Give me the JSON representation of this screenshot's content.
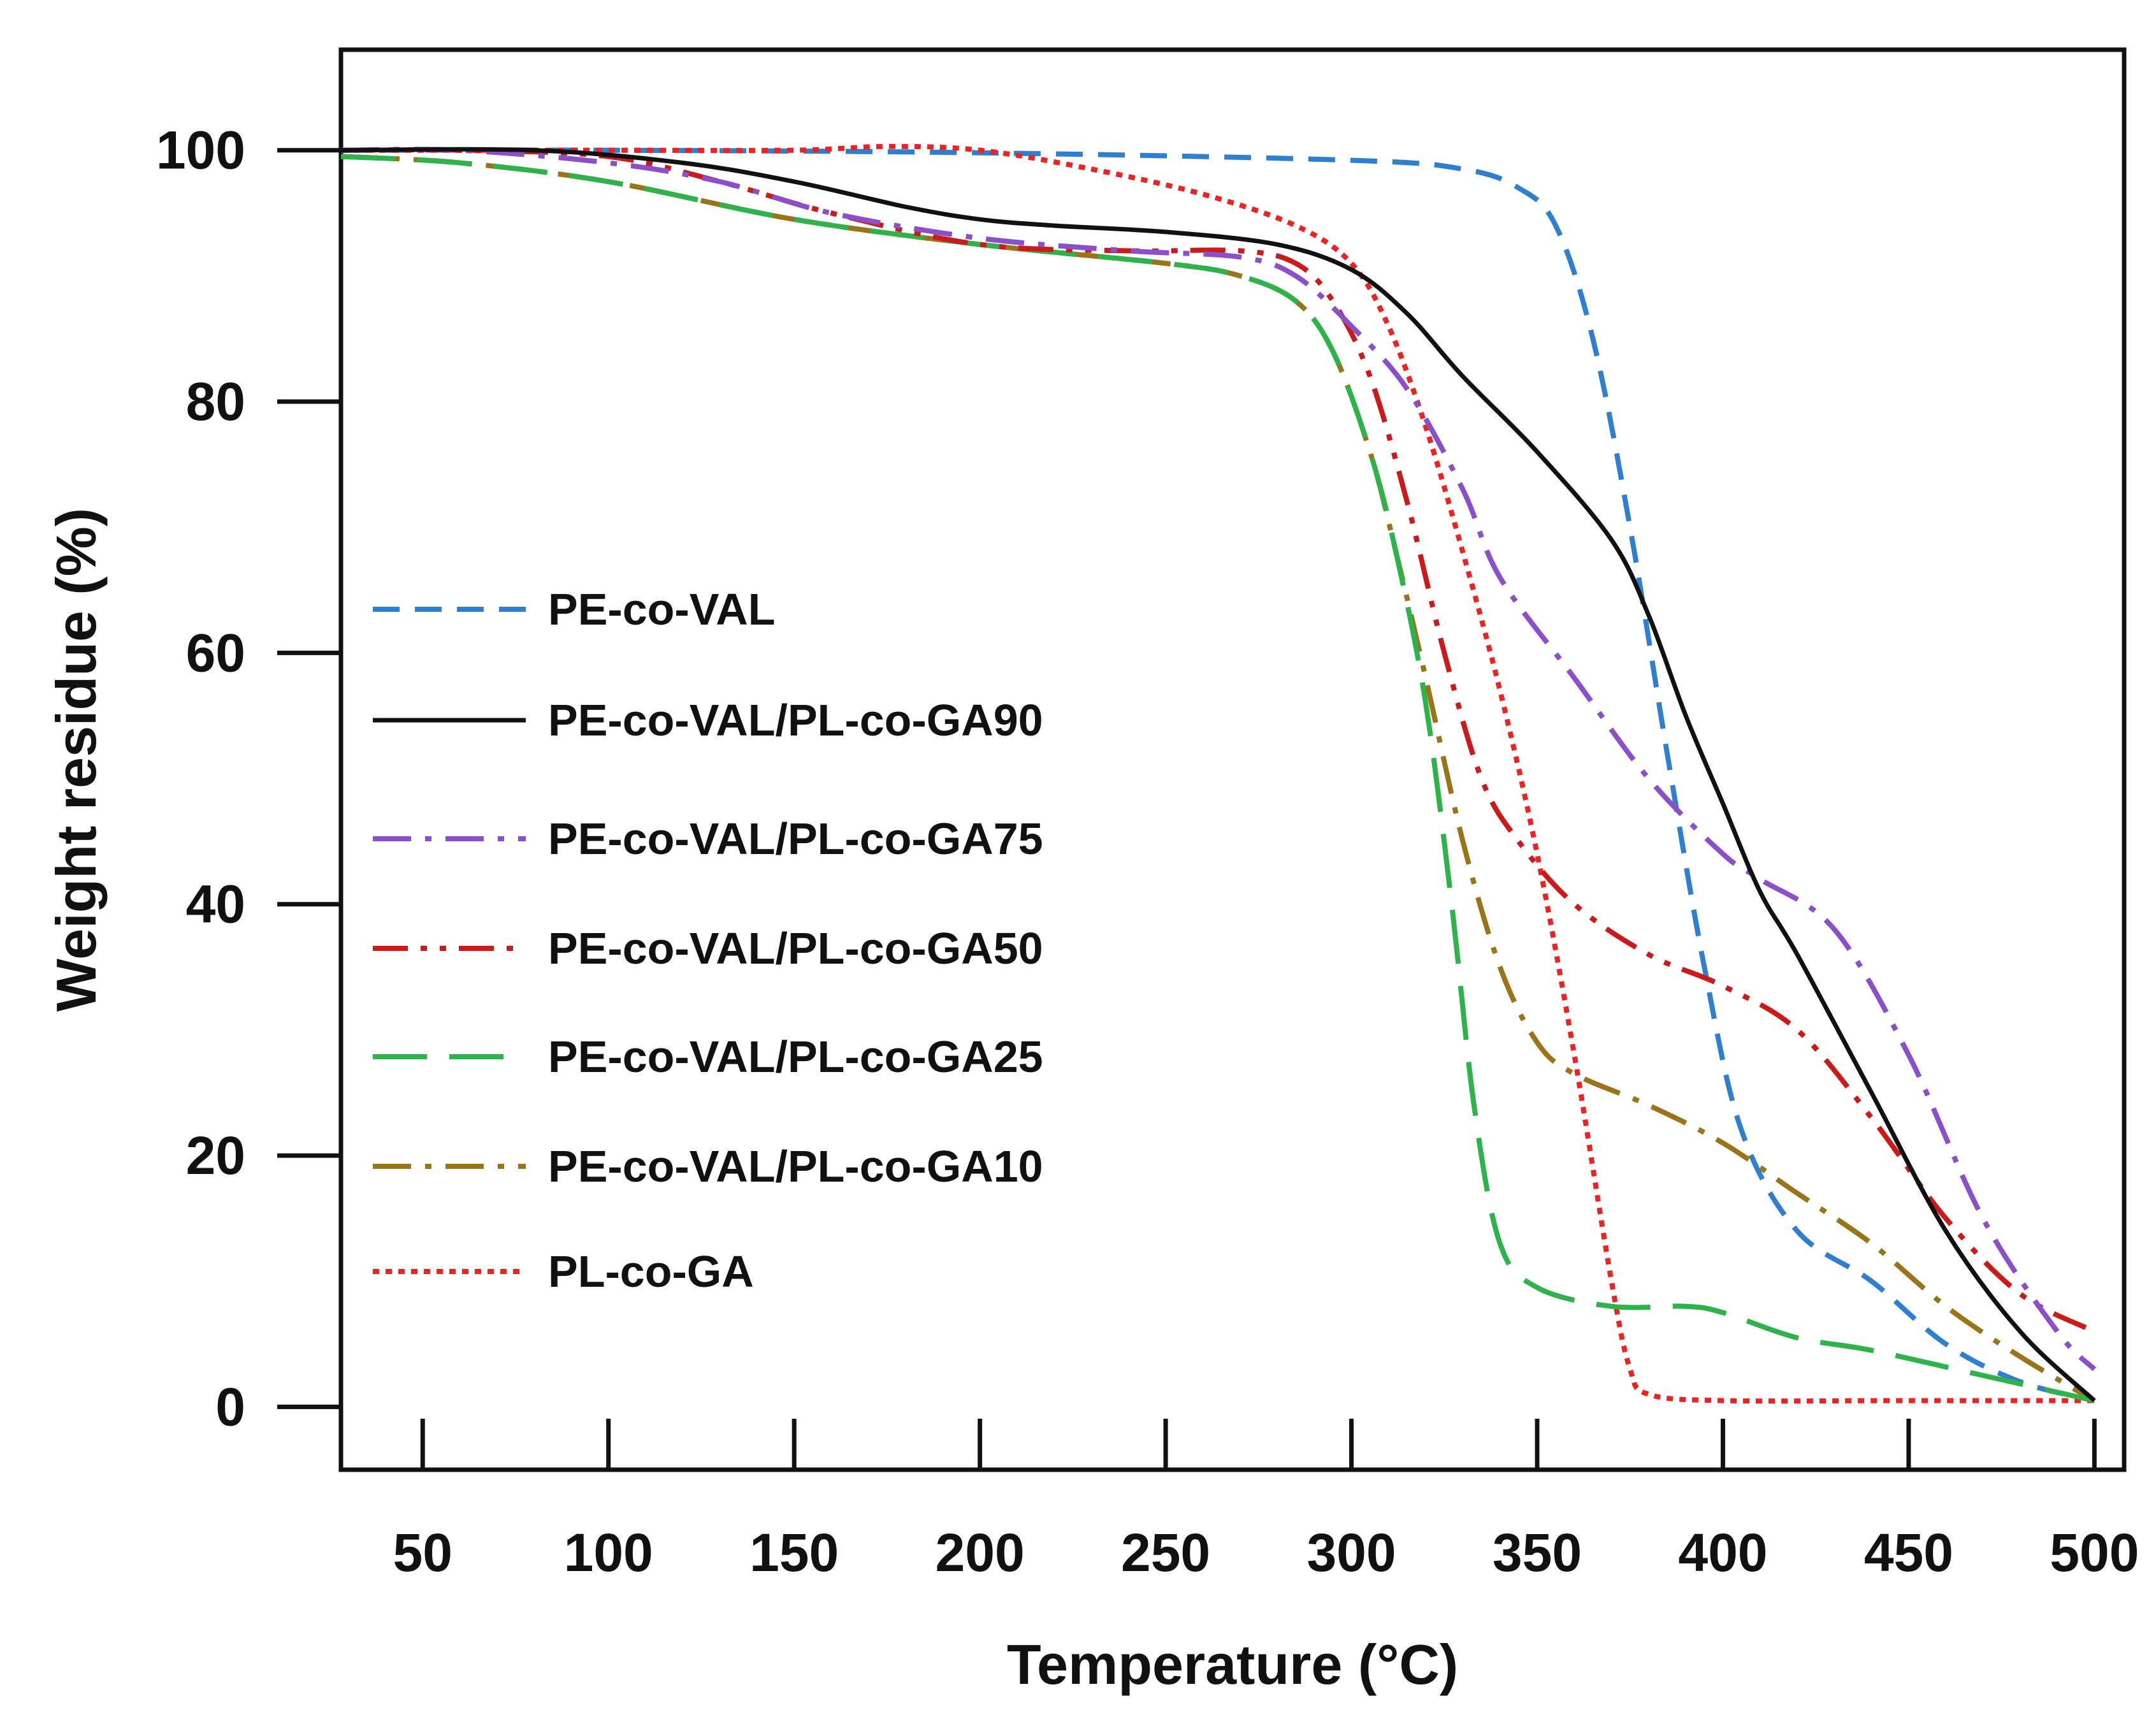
{
  "chart_data": {
    "type": "line",
    "title": "",
    "xlabel": "Temperature (°C)",
    "ylabel": "Weight residue (%)",
    "xlim": [
      28,
      508
    ],
    "ylim": [
      -5,
      108
    ],
    "xticks": [
      50,
      100,
      150,
      200,
      250,
      300,
      350,
      400,
      450,
      500
    ],
    "yticks": [
      0,
      20,
      40,
      60,
      80,
      100
    ],
    "legend_position": "center-left",
    "series": [
      {
        "name": "PE-co-VAL",
        "color": "#2f7fd0",
        "style": "dashed",
        "points": [
          [
            28,
            100
          ],
          [
            100,
            100
          ],
          [
            200,
            99.8
          ],
          [
            300,
            99.2
          ],
          [
            330,
            98.5
          ],
          [
            345,
            97
          ],
          [
            355,
            94
          ],
          [
            365,
            85
          ],
          [
            375,
            70
          ],
          [
            385,
            52
          ],
          [
            395,
            35
          ],
          [
            405,
            22
          ],
          [
            420,
            14
          ],
          [
            440,
            10
          ],
          [
            460,
            5
          ],
          [
            480,
            2
          ],
          [
            500,
            0.5
          ]
        ]
      },
      {
        "name": "PE-co-VAL/PL-co-GA90",
        "color": "#111111",
        "style": "solid",
        "points": [
          [
            28,
            100
          ],
          [
            80,
            100
          ],
          [
            120,
            99
          ],
          [
            150,
            97.5
          ],
          [
            180,
            95.5
          ],
          [
            200,
            94.5
          ],
          [
            220,
            94
          ],
          [
            250,
            93.5
          ],
          [
            280,
            92.5
          ],
          [
            300,
            90.5
          ],
          [
            315,
            87
          ],
          [
            330,
            82
          ],
          [
            350,
            76
          ],
          [
            370,
            69
          ],
          [
            380,
            63
          ],
          [
            390,
            55
          ],
          [
            400,
            48
          ],
          [
            410,
            41
          ],
          [
            420,
            36
          ],
          [
            440,
            25
          ],
          [
            460,
            14
          ],
          [
            480,
            6
          ],
          [
            500,
            0.5
          ]
        ]
      },
      {
        "name": "PE-co-VAL/PL-co-GA75",
        "color": "#8a4fc9",
        "style": "dashdot",
        "points": [
          [
            28,
            100
          ],
          [
            60,
            100
          ],
          [
            100,
            99
          ],
          [
            130,
            97.5
          ],
          [
            160,
            95
          ],
          [
            200,
            93
          ],
          [
            240,
            92
          ],
          [
            270,
            91.5
          ],
          [
            285,
            90
          ],
          [
            300,
            86
          ],
          [
            315,
            81
          ],
          [
            330,
            73
          ],
          [
            340,
            66
          ],
          [
            360,
            58
          ],
          [
            380,
            50
          ],
          [
            400,
            44
          ],
          [
            410,
            42
          ],
          [
            430,
            38
          ],
          [
            450,
            28
          ],
          [
            470,
            15
          ],
          [
            490,
            6
          ],
          [
            500,
            3
          ]
        ]
      },
      {
        "name": "PE-co-VAL/PL-co-GA50",
        "color": "#cc1a1a",
        "style": "dashdotdot",
        "points": [
          [
            28,
            100
          ],
          [
            60,
            100
          ],
          [
            100,
            99.5
          ],
          [
            130,
            97.5
          ],
          [
            160,
            95
          ],
          [
            200,
            92.5
          ],
          [
            240,
            92
          ],
          [
            270,
            92
          ],
          [
            285,
            91
          ],
          [
            295,
            88
          ],
          [
            305,
            82
          ],
          [
            315,
            72
          ],
          [
            325,
            60
          ],
          [
            335,
            50
          ],
          [
            345,
            45
          ],
          [
            360,
            40
          ],
          [
            380,
            36
          ],
          [
            400,
            33.5
          ],
          [
            420,
            30
          ],
          [
            440,
            23
          ],
          [
            460,
            15
          ],
          [
            480,
            9
          ],
          [
            500,
            6
          ]
        ]
      },
      {
        "name": "PE-co-VAL/PL-co-GA25",
        "color": "#2db34a",
        "style": "longdash",
        "points": [
          [
            28,
            99.5
          ],
          [
            60,
            99
          ],
          [
            100,
            97.5
          ],
          [
            150,
            94.5
          ],
          [
            200,
            92.5
          ],
          [
            250,
            91
          ],
          [
            270,
            90
          ],
          [
            285,
            88
          ],
          [
            295,
            84
          ],
          [
            305,
            76
          ],
          [
            312,
            68
          ],
          [
            320,
            56
          ],
          [
            327,
            40
          ],
          [
            333,
            24
          ],
          [
            340,
            13
          ],
          [
            350,
            9.5
          ],
          [
            370,
            8
          ],
          [
            390,
            8
          ],
          [
            400,
            7.5
          ],
          [
            420,
            5.5
          ],
          [
            440,
            4.5
          ],
          [
            470,
            2.5
          ],
          [
            500,
            0.5
          ]
        ]
      },
      {
        "name": "PE-co-VAL/PL-co-GA10",
        "color": "#9a7419",
        "style": "dashdot",
        "points": [
          [
            28,
            99.5
          ],
          [
            60,
            99
          ],
          [
            100,
            97.5
          ],
          [
            150,
            94.5
          ],
          [
            200,
            92.5
          ],
          [
            250,
            91
          ],
          [
            270,
            90
          ],
          [
            285,
            88
          ],
          [
            295,
            84
          ],
          [
            305,
            76
          ],
          [
            312,
            68
          ],
          [
            320,
            58
          ],
          [
            330,
            45
          ],
          [
            340,
            35
          ],
          [
            350,
            29
          ],
          [
            360,
            26.5
          ],
          [
            380,
            24
          ],
          [
            400,
            21
          ],
          [
            420,
            17
          ],
          [
            440,
            13
          ],
          [
            460,
            8
          ],
          [
            480,
            4
          ],
          [
            500,
            0.5
          ]
        ]
      },
      {
        "name": "PL-co-GA",
        "color": "#ee2222",
        "style": "dotted",
        "points": [
          [
            28,
            100
          ],
          [
            100,
            100
          ],
          [
            150,
            100
          ],
          [
            175,
            100.3
          ],
          [
            200,
            100
          ],
          [
            230,
            98.5
          ],
          [
            260,
            96.5
          ],
          [
            285,
            94
          ],
          [
            300,
            91
          ],
          [
            310,
            86
          ],
          [
            320,
            78
          ],
          [
            330,
            68
          ],
          [
            340,
            57
          ],
          [
            350,
            44
          ],
          [
            360,
            28
          ],
          [
            370,
            10
          ],
          [
            375,
            3
          ],
          [
            380,
            1
          ],
          [
            400,
            0.5
          ],
          [
            450,
            0.5
          ],
          [
            500,
            0.5
          ]
        ]
      }
    ]
  }
}
